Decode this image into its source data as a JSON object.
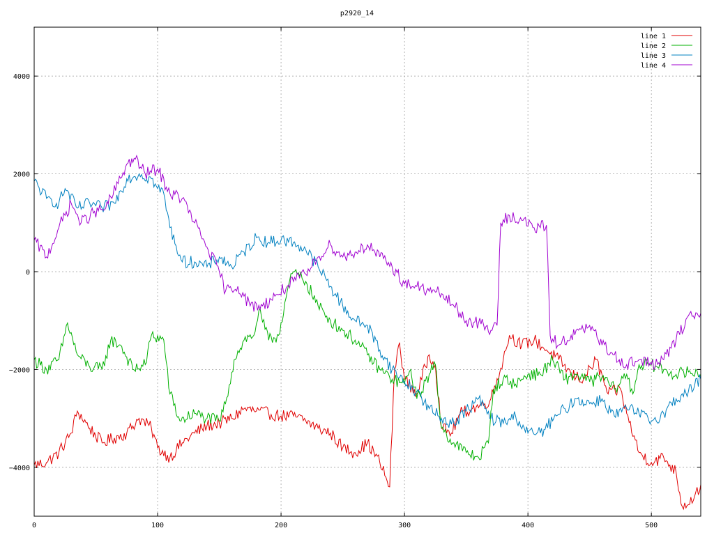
{
  "chart_data": {
    "type": "line",
    "title": "p2920_14",
    "xlabel": "",
    "ylabel": "",
    "xlim": [
      0,
      540
    ],
    "ylim": [
      -5000,
      5000
    ],
    "x_ticks": [
      0,
      100,
      200,
      300,
      400,
      500
    ],
    "y_ticks": [
      -4000,
      -2000,
      0,
      2000,
      4000
    ],
    "grid": true,
    "legend_position": "top-right",
    "series": [
      {
        "name": "line 1",
        "color": "#e00000",
        "points": [
          [
            0,
            -3950
          ],
          [
            10,
            -3900
          ],
          [
            20,
            -3700
          ],
          [
            30,
            -3300
          ],
          [
            35,
            -2850
          ],
          [
            45,
            -3200
          ],
          [
            55,
            -3500
          ],
          [
            65,
            -3400
          ],
          [
            75,
            -3300
          ],
          [
            85,
            -3000
          ],
          [
            95,
            -3200
          ],
          [
            100,
            -3600
          ],
          [
            110,
            -3800
          ],
          [
            120,
            -3500
          ],
          [
            130,
            -3300
          ],
          [
            140,
            -3150
          ],
          [
            150,
            -3100
          ],
          [
            160,
            -3000
          ],
          [
            170,
            -2800
          ],
          [
            180,
            -2850
          ],
          [
            190,
            -2900
          ],
          [
            200,
            -2950
          ],
          [
            210,
            -2950
          ],
          [
            220,
            -3050
          ],
          [
            230,
            -3200
          ],
          [
            240,
            -3300
          ],
          [
            250,
            -3600
          ],
          [
            260,
            -3700
          ],
          [
            270,
            -3500
          ],
          [
            280,
            -3900
          ],
          [
            288,
            -4400
          ],
          [
            292,
            -2000
          ],
          [
            296,
            -1450
          ],
          [
            300,
            -2200
          ],
          [
            310,
            -2500
          ],
          [
            320,
            -1700
          ],
          [
            325,
            -1900
          ],
          [
            330,
            -3200
          ],
          [
            338,
            -3300
          ],
          [
            345,
            -2900
          ],
          [
            355,
            -2800
          ],
          [
            365,
            -2700
          ],
          [
            370,
            -2600
          ],
          [
            380,
            -1800
          ],
          [
            385,
            -1300
          ],
          [
            395,
            -1500
          ],
          [
            405,
            -1400
          ],
          [
            415,
            -1600
          ],
          [
            425,
            -1800
          ],
          [
            435,
            -2100
          ],
          [
            445,
            -2200
          ],
          [
            455,
            -1800
          ],
          [
            465,
            -2500
          ],
          [
            475,
            -2400
          ],
          [
            480,
            -2900
          ],
          [
            490,
            -3700
          ],
          [
            500,
            -3900
          ],
          [
            510,
            -3800
          ],
          [
            520,
            -4100
          ],
          [
            525,
            -4800
          ],
          [
            535,
            -4600
          ],
          [
            540,
            -4350
          ]
        ]
      },
      {
        "name": "line 2",
        "color": "#00b000",
        "points": [
          [
            0,
            -1800
          ],
          [
            10,
            -2000
          ],
          [
            20,
            -1800
          ],
          [
            27,
            -1050
          ],
          [
            35,
            -1700
          ],
          [
            45,
            -1950
          ],
          [
            55,
            -2000
          ],
          [
            62,
            -1400
          ],
          [
            70,
            -1500
          ],
          [
            80,
            -2000
          ],
          [
            90,
            -1900
          ],
          [
            95,
            -1300
          ],
          [
            105,
            -1400
          ],
          [
            110,
            -2500
          ],
          [
            118,
            -3050
          ],
          [
            130,
            -2900
          ],
          [
            140,
            -3000
          ],
          [
            150,
            -3050
          ],
          [
            155,
            -2700
          ],
          [
            162,
            -1800
          ],
          [
            170,
            -1400
          ],
          [
            178,
            -1300
          ],
          [
            182,
            -800
          ],
          [
            190,
            -1400
          ],
          [
            198,
            -1300
          ],
          [
            205,
            -400
          ],
          [
            210,
            0
          ],
          [
            220,
            -200
          ],
          [
            230,
            -700
          ],
          [
            240,
            -1000
          ],
          [
            250,
            -1200
          ],
          [
            260,
            -1400
          ],
          [
            270,
            -1700
          ],
          [
            280,
            -2000
          ],
          [
            290,
            -2200
          ],
          [
            300,
            -2300
          ],
          [
            305,
            -2000
          ],
          [
            310,
            -2600
          ],
          [
            320,
            -2100
          ],
          [
            325,
            -1900
          ],
          [
            330,
            -3200
          ],
          [
            340,
            -3500
          ],
          [
            350,
            -3700
          ],
          [
            360,
            -3800
          ],
          [
            368,
            -3500
          ],
          [
            372,
            -2400
          ],
          [
            380,
            -2200
          ],
          [
            390,
            -2300
          ],
          [
            400,
            -2100
          ],
          [
            410,
            -2100
          ],
          [
            420,
            -1800
          ],
          [
            430,
            -2200
          ],
          [
            440,
            -2100
          ],
          [
            450,
            -2250
          ],
          [
            460,
            -2150
          ],
          [
            470,
            -2400
          ],
          [
            480,
            -2100
          ],
          [
            485,
            -2500
          ],
          [
            490,
            -1900
          ],
          [
            500,
            -1900
          ],
          [
            510,
            -2000
          ],
          [
            520,
            -2100
          ],
          [
            530,
            -2050
          ],
          [
            540,
            -2100
          ]
        ]
      },
      {
        "name": "line 3",
        "color": "#0080c0",
        "points": [
          [
            0,
            1850
          ],
          [
            10,
            1500
          ],
          [
            20,
            1400
          ],
          [
            25,
            1700
          ],
          [
            35,
            1300
          ],
          [
            45,
            1400
          ],
          [
            55,
            1300
          ],
          [
            65,
            1400
          ],
          [
            75,
            1900
          ],
          [
            85,
            2000
          ],
          [
            95,
            1900
          ],
          [
            100,
            1700
          ],
          [
            105,
            1600
          ],
          [
            110,
            900
          ],
          [
            120,
            200
          ],
          [
            130,
            200
          ],
          [
            140,
            100
          ],
          [
            150,
            300
          ],
          [
            160,
            100
          ],
          [
            170,
            400
          ],
          [
            180,
            700
          ],
          [
            190,
            600
          ],
          [
            200,
            650
          ],
          [
            210,
            600
          ],
          [
            220,
            450
          ],
          [
            230,
            100
          ],
          [
            240,
            -300
          ],
          [
            250,
            -700
          ],
          [
            260,
            -1000
          ],
          [
            270,
            -1100
          ],
          [
            280,
            -1600
          ],
          [
            290,
            -2000
          ],
          [
            300,
            -2250
          ],
          [
            310,
            -2450
          ],
          [
            320,
            -2800
          ],
          [
            330,
            -3000
          ],
          [
            340,
            -3100
          ],
          [
            350,
            -2850
          ],
          [
            360,
            -2600
          ],
          [
            370,
            -3000
          ],
          [
            380,
            -3100
          ],
          [
            390,
            -2950
          ],
          [
            400,
            -3300
          ],
          [
            410,
            -3300
          ],
          [
            420,
            -3050
          ],
          [
            430,
            -2800
          ],
          [
            440,
            -2600
          ],
          [
            450,
            -2700
          ],
          [
            460,
            -2600
          ],
          [
            470,
            -2950
          ],
          [
            480,
            -2800
          ],
          [
            490,
            -2900
          ],
          [
            500,
            -3050
          ],
          [
            510,
            -2900
          ],
          [
            520,
            -2600
          ],
          [
            530,
            -2450
          ],
          [
            540,
            -2200
          ]
        ]
      },
      {
        "name": "line 4",
        "color": "#a000d0",
        "points": [
          [
            0,
            650
          ],
          [
            10,
            300
          ],
          [
            20,
            900
          ],
          [
            30,
            1400
          ],
          [
            38,
            1000
          ],
          [
            48,
            1200
          ],
          [
            58,
            1300
          ],
          [
            68,
            1800
          ],
          [
            75,
            2200
          ],
          [
            82,
            2300
          ],
          [
            90,
            2000
          ],
          [
            100,
            2100
          ],
          [
            110,
            1600
          ],
          [
            120,
            1500
          ],
          [
            130,
            1000
          ],
          [
            140,
            500
          ],
          [
            150,
            0
          ],
          [
            155,
            -400
          ],
          [
            165,
            -300
          ],
          [
            170,
            -500
          ],
          [
            175,
            -700
          ],
          [
            185,
            -700
          ],
          [
            195,
            -500
          ],
          [
            205,
            -300
          ],
          [
            210,
            -200
          ],
          [
            220,
            -50
          ],
          [
            225,
            100
          ],
          [
            230,
            300
          ],
          [
            240,
            550
          ],
          [
            250,
            300
          ],
          [
            260,
            400
          ],
          [
            270,
            550
          ],
          [
            280,
            300
          ],
          [
            290,
            100
          ],
          [
            300,
            -250
          ],
          [
            310,
            -300
          ],
          [
            320,
            -400
          ],
          [
            330,
            -450
          ],
          [
            340,
            -700
          ],
          [
            350,
            -1000
          ],
          [
            360,
            -1050
          ],
          [
            370,
            -1200
          ],
          [
            375,
            -1100
          ],
          [
            378,
            1000
          ],
          [
            385,
            1150
          ],
          [
            395,
            1050
          ],
          [
            405,
            900
          ],
          [
            410,
            900
          ],
          [
            415,
            950
          ],
          [
            418,
            -1300
          ],
          [
            425,
            -1500
          ],
          [
            435,
            -1300
          ],
          [
            445,
            -1200
          ],
          [
            450,
            -1100
          ],
          [
            460,
            -1500
          ],
          [
            470,
            -1700
          ],
          [
            480,
            -1900
          ],
          [
            490,
            -1800
          ],
          [
            500,
            -1900
          ],
          [
            510,
            -1800
          ],
          [
            520,
            -1400
          ],
          [
            530,
            -900
          ],
          [
            540,
            -850
          ]
        ]
      }
    ]
  }
}
